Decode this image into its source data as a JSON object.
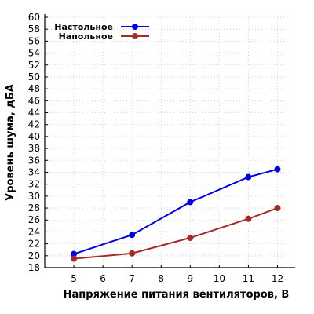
{
  "chart_data": {
    "type": "line",
    "xlabel": "Напряжение питания вентиляторов, В",
    "ylabel": "Уровень шума, дБА",
    "x_ticks": [
      5,
      6,
      7,
      8,
      9,
      10,
      11,
      12
    ],
    "xlim": [
      4,
      12.5
    ],
    "ylim": [
      18,
      60
    ],
    "y_step": 2,
    "grid": true,
    "legend_position": "top-left",
    "series": [
      {
        "name": "Настольное",
        "color": "#0000dd",
        "points": [
          [
            5,
            20.3
          ],
          [
            7,
            23.5
          ],
          [
            9,
            29.0
          ],
          [
            11,
            33.2
          ],
          [
            12,
            34.5
          ]
        ]
      },
      {
        "name": "Напольное",
        "color": "#a52a2a",
        "points": [
          [
            5,
            19.5
          ],
          [
            7,
            20.4
          ],
          [
            9,
            23.0
          ],
          [
            11,
            26.2
          ],
          [
            12,
            28.0
          ]
        ]
      }
    ]
  }
}
